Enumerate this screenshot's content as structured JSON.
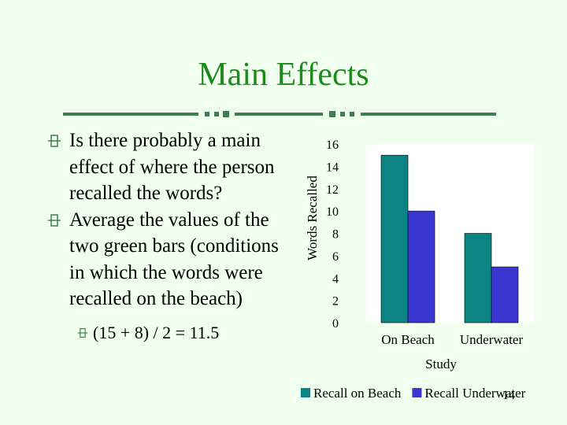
{
  "slide": {
    "title": "Main Effects",
    "bullets": [
      "Is there probably a main effect of where the person recalled the words?",
      "Average the values of the two green bars (conditions in which the words were recalled on the beach)"
    ],
    "sub_bullet": "(15 + 8) / 2 = 11.5",
    "page_number": "14"
  },
  "colors": {
    "title": "#1e8a1e",
    "background": "#f0ffee",
    "accent_line": "#3f7f4f"
  },
  "chart_data": {
    "type": "bar",
    "categories": [
      "On Beach",
      "Underwater"
    ],
    "series": [
      {
        "name": "Recall on Beach",
        "values": [
          15,
          8
        ],
        "color": "#0c8484"
      },
      {
        "name": "Recall Underwater",
        "values": [
          10,
          5
        ],
        "color": "#3a36d0"
      }
    ],
    "title": "",
    "xlabel": "Study",
    "ylabel": "Words Recalled",
    "ylim": [
      0,
      16
    ],
    "yticks": [
      0,
      2,
      4,
      6,
      8,
      10,
      12,
      14,
      16
    ],
    "grid": false,
    "legend": "bottom"
  }
}
